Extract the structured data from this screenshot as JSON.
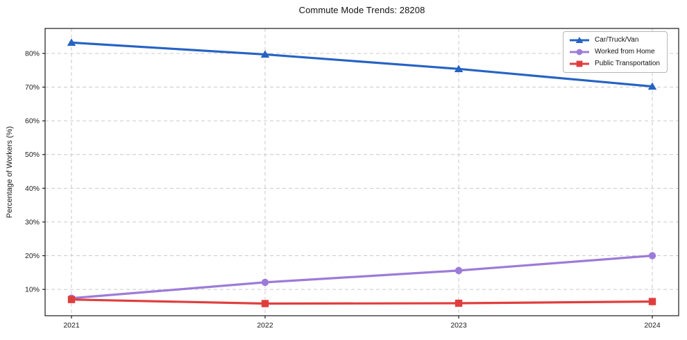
{
  "chart_data": {
    "type": "line",
    "title": "Commute Mode Trends: 28208",
    "xlabel": "",
    "ylabel": "Percentage of Workers (%)",
    "x": [
      "2021",
      "2022",
      "2023",
      "2024"
    ],
    "series": [
      {
        "name": "Car/Truck/Van",
        "values": [
          83.2,
          79.7,
          75.4,
          70.2
        ],
        "color": "#2663c3",
        "marker": "triangle"
      },
      {
        "name": "Worked from Home",
        "values": [
          7.4,
          12.1,
          15.6,
          20.0
        ],
        "color": "#9d7bd8",
        "marker": "circle"
      },
      {
        "name": "Public Transportation",
        "values": [
          7.0,
          5.8,
          5.9,
          6.4
        ],
        "color": "#e03e3e",
        "marker": "square"
      }
    ],
    "yticks": [
      10,
      20,
      30,
      40,
      50,
      60,
      70,
      80
    ],
    "ytick_suffix": "%",
    "ylim": [
      2.2,
      87.4
    ],
    "grid": true,
    "grid_style": "dashed",
    "grid_color": "#c9c9c9",
    "axis_color": "#1a1a1a",
    "legend_position": "top-right"
  }
}
